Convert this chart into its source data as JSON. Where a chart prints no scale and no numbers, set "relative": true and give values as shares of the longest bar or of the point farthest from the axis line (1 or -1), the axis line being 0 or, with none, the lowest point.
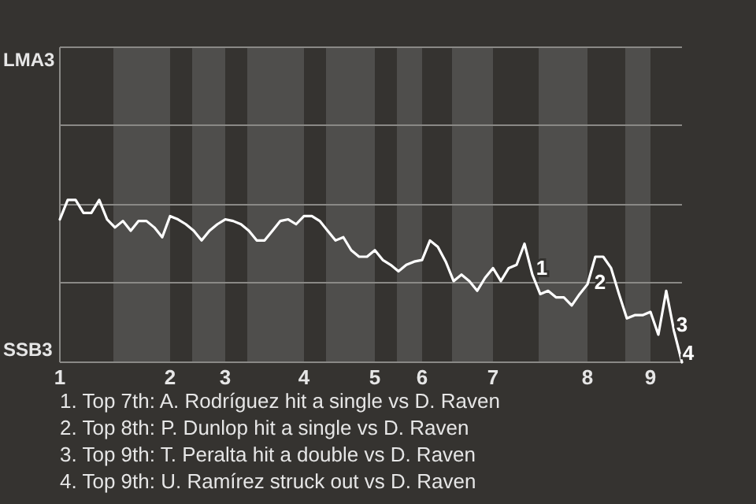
{
  "chart_data": {
    "type": "line",
    "relative": true,
    "ref_lines": [
      {
        "axis": "y",
        "value": 0.49,
        "color": "#8a8986"
      },
      {
        "axis": "y",
        "value": 0.97,
        "color": "#8a8986"
      },
      {
        "axis": "y",
        "value": 1.46,
        "color": "#8a8986"
      }
    ],
    "categories": [
      "1",
      null,
      null,
      null,
      null,
      null,
      null,
      null,
      null,
      null,
      null,
      null,
      null,
      null,
      "2",
      null,
      null,
      null,
      null,
      null,
      null,
      "3",
      null,
      null,
      null,
      null,
      null,
      null,
      null,
      null,
      null,
      "4",
      null,
      null,
      null,
      null,
      null,
      null,
      null,
      null,
      "5",
      null,
      null,
      null,
      null,
      null,
      "6",
      null,
      null,
      null,
      null,
      null,
      null,
      null,
      null,
      "7",
      null,
      null,
      null,
      null,
      null,
      null,
      null,
      null,
      null,
      null,
      null,
      "8",
      null,
      null,
      null,
      null,
      null,
      null,
      null,
      "9",
      null,
      null,
      null,
      null
    ],
    "series": [
      {
        "color": "#ffffff",
        "values": [
          0.88,
          1,
          1,
          0.92,
          0.92,
          1,
          0.88,
          0.83,
          0.87,
          0.81,
          0.87,
          0.87,
          0.83,
          0.77,
          0.9,
          0.88,
          0.85,
          0.81,
          0.75,
          0.81,
          0.85,
          0.88,
          0.87,
          0.85,
          0.81,
          0.75,
          0.75,
          0.81,
          0.87,
          0.88,
          0.85,
          0.9,
          0.9,
          0.87,
          0.81,
          0.75,
          0.77,
          0.69,
          0.65,
          0.65,
          0.69,
          0.63,
          0.6,
          0.56,
          0.6,
          0.62,
          0.63,
          0.75,
          0.71,
          0.62,
          0.5,
          0.54,
          0.5,
          0.44,
          0.52,
          0.58,
          0.5,
          0.58,
          0.6,
          0.73,
          0.54,
          0.42,
          0.44,
          0.4,
          0.4,
          0.35,
          0.42,
          0.48,
          0.65,
          0.65,
          0.58,
          0.42,
          0.27,
          0.29,
          0.29,
          0.31,
          0.17,
          0.44,
          0.19,
          0
        ]
      }
    ],
    "annotations": [
      "LMA3",
      "SSB3",
      "1",
      "2",
      "3",
      "4",
      "1. Top 7th: A. Rodríguez hit a single vs D. Raven",
      "2. Top 8th: P. Dunlop hit a single vs D. Raven",
      "3. Top 9th: T. Peralta hit a double vs D. Raven",
      "4. Top 9th: U. Ramírez struck out vs D. Raven"
    ]
  }
}
